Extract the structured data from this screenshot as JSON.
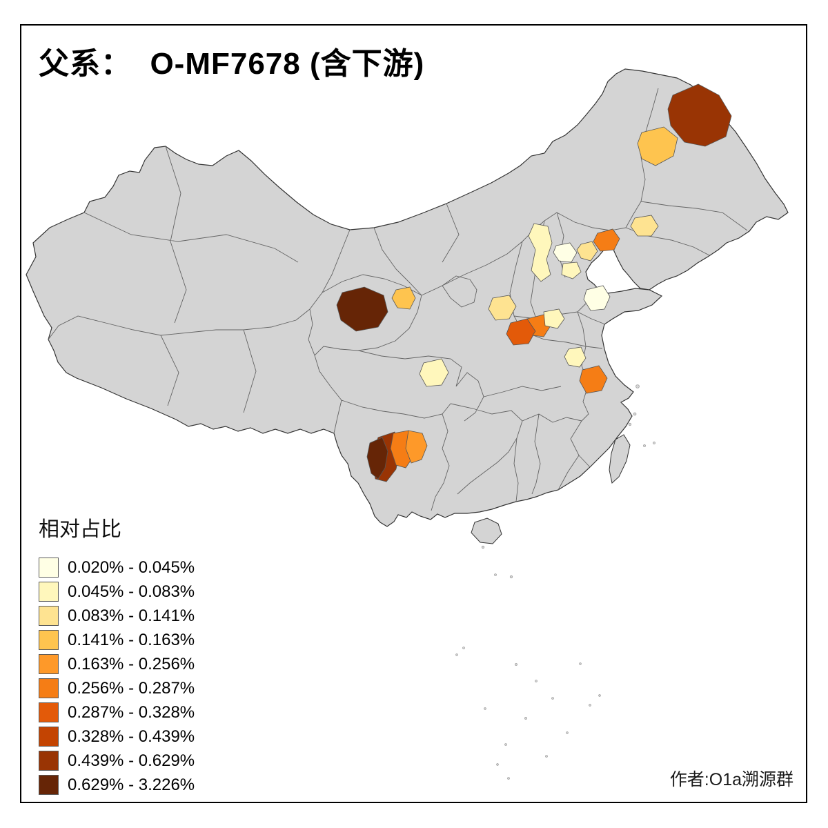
{
  "title": "父系：  O-MF7678 (含下游)",
  "attribution": "作者:O1a溯源群",
  "legend": {
    "title": "相对占比",
    "items": [
      {
        "label": "0.020% - 0.045%",
        "color": "#FFFFE5"
      },
      {
        "label": "0.045% - 0.083%",
        "color": "#FFF7BC"
      },
      {
        "label": "0.083% - 0.141%",
        "color": "#FEE391"
      },
      {
        "label": "0.141% - 0.163%",
        "color": "#FEC44F"
      },
      {
        "label": "0.163% - 0.256%",
        "color": "#FE9929"
      },
      {
        "label": "0.256% - 0.287%",
        "color": "#F57D15"
      },
      {
        "label": "0.287% - 0.328%",
        "color": "#E35A09"
      },
      {
        "label": "0.328% - 0.439%",
        "color": "#C34402"
      },
      {
        "label": "0.439% - 0.629%",
        "color": "#993404"
      },
      {
        "label": "0.629% - 3.226%",
        "color": "#662506"
      }
    ]
  },
  "map": {
    "land_fill": "#D4D4D4",
    "province_border_color": "#636363",
    "outline_color": "#333333",
    "island_fill": "#D4D4D4",
    "regions": [
      {
        "color": "#993404",
        "legend_class": 9
      },
      {
        "color": "#FEC44F",
        "legend_class": 4
      },
      {
        "color": "#F57D15",
        "legend_class": 6
      },
      {
        "color": "#FEE391",
        "legend_class": 3
      },
      {
        "color": "#FFF7BC",
        "legend_class": 2
      },
      {
        "color": "#FFFFE5",
        "legend_class": 1
      },
      {
        "color": "#FFF7BC",
        "legend_class": 2
      },
      {
        "color": "#FEE391",
        "legend_class": 3
      },
      {
        "color": "#FFFFE5",
        "legend_class": 1
      },
      {
        "color": "#662506",
        "legend_class": 10
      },
      {
        "color": "#FEC44F",
        "legend_class": 4
      },
      {
        "color": "#FEE391",
        "legend_class": 3
      },
      {
        "color": "#E35A09",
        "legend_class": 7
      },
      {
        "color": "#F57D15",
        "legend_class": 6
      },
      {
        "color": "#FFF7BC",
        "legend_class": 2
      },
      {
        "color": "#FFF7BC",
        "legend_class": 2
      },
      {
        "color": "#FFF7BC",
        "legend_class": 2
      },
      {
        "color": "#F57D15",
        "legend_class": 6
      },
      {
        "color": "#993404",
        "legend_class": 9
      },
      {
        "color": "#662506",
        "legend_class": 10
      },
      {
        "color": "#F57D15",
        "legend_class": 6
      },
      {
        "color": "#FE9929",
        "legend_class": 5
      }
    ]
  }
}
